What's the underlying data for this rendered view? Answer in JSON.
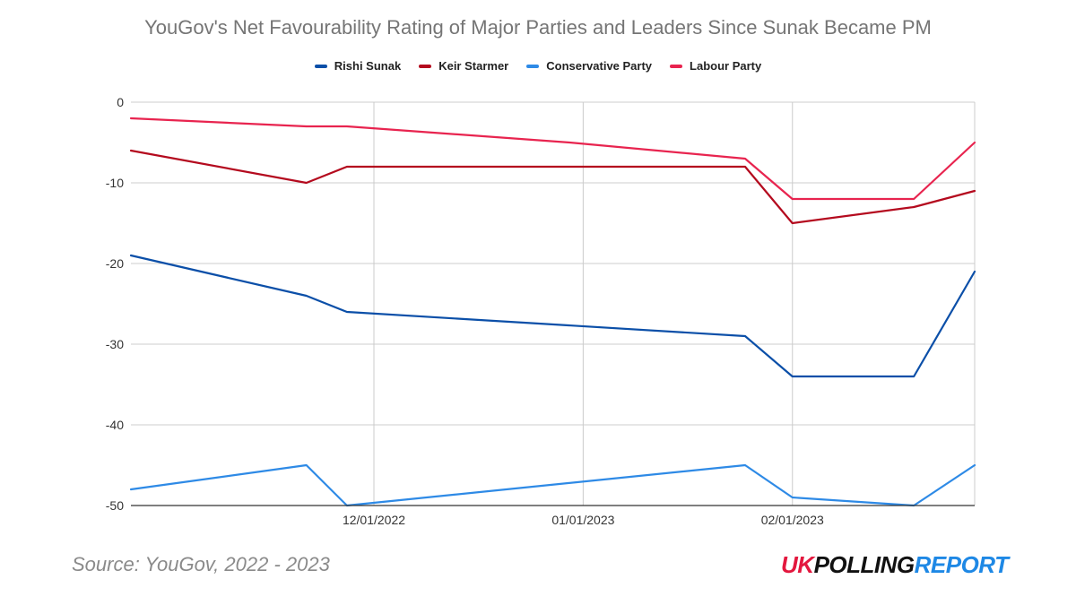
{
  "chart_data": {
    "type": "line",
    "title": "YouGov's Net Favourability Rating of Major Parties and Leaders Since Sunak Became PM",
    "xlabel": "",
    "ylabel": "",
    "ylim": [
      -50,
      0
    ],
    "yticks": [
      0,
      -10,
      -20,
      -30,
      -40,
      -50
    ],
    "xlim": [
      "2022-10-26",
      "2023-02-28"
    ],
    "xticks": [
      "12/01/2022",
      "01/01/2023",
      "02/01/2023"
    ],
    "grid": true,
    "legend_position": "top",
    "x": [
      "2022-10-26",
      "2022-11-21",
      "2022-11-27",
      "2022-12-30",
      "2023-01-25",
      "2023-02-01",
      "2023-02-19",
      "2023-02-28"
    ],
    "series": [
      {
        "name": "Rishi Sunak",
        "color": "#0b4fa8",
        "values": [
          -19,
          -24,
          -26,
          null,
          -29,
          -34,
          -34,
          -21
        ]
      },
      {
        "name": "Keir Starmer",
        "color": "#b40a1e",
        "values": [
          -6,
          -10,
          -8,
          -8,
          -8,
          -15,
          -13,
          -11
        ]
      },
      {
        "name": "Conservative Party",
        "color": "#2e8ae6",
        "values": [
          -48,
          -45,
          -50,
          null,
          -45,
          -49,
          -50,
          -45
        ]
      },
      {
        "name": "Labour Party",
        "color": "#e8244f",
        "values": [
          -2,
          -3,
          -3,
          -5,
          -7,
          -12,
          -12,
          -5
        ]
      }
    ]
  },
  "footer": {
    "source": "Source: YouGov, 2022 - 2023",
    "logo_uk": "UK",
    "logo_polling": "POLLING",
    "logo_report": "REPORT"
  }
}
